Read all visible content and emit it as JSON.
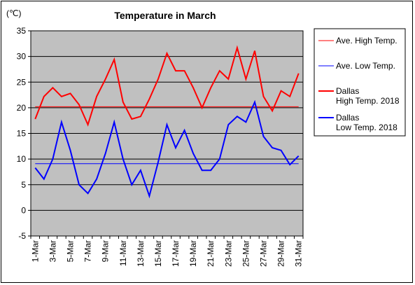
{
  "chart_data": {
    "type": "line",
    "title": "Temperature in March",
    "unit_label": "(℃)",
    "ylim": [
      -5,
      35
    ],
    "y_ticks": [
      "35",
      "30",
      "25",
      "20",
      "15",
      "10",
      "5",
      "0",
      "-5"
    ],
    "x_tick_labels": [
      "1-Mar",
      "3-Mar",
      "5-Mar",
      "7-Mar",
      "9-Mar",
      "11-Mar",
      "13-Mar",
      "15-Mar",
      "17-Mar",
      "19-Mar",
      "21-Mar",
      "23-Mar",
      "25-Mar",
      "27-Mar",
      "29-Mar",
      "31-Mar"
    ],
    "x": [
      1,
      2,
      3,
      4,
      5,
      6,
      7,
      8,
      9,
      10,
      11,
      12,
      13,
      14,
      15,
      16,
      17,
      18,
      19,
      20,
      21,
      22,
      23,
      24,
      25,
      26,
      27,
      28,
      29,
      30,
      31
    ],
    "grid": true,
    "legend_position": "right",
    "series": [
      {
        "name": "Ave. High Temp.",
        "color": "#ff0000",
        "width": 1,
        "values": [
          20.2,
          20.2,
          20.2,
          20.2,
          20.2,
          20.2,
          20.2,
          20.2,
          20.2,
          20.2,
          20.2,
          20.2,
          20.2,
          20.2,
          20.2,
          20.2,
          20.2,
          20.2,
          20.2,
          20.2,
          20.2,
          20.2,
          20.2,
          20.2,
          20.2,
          20.2,
          20.2,
          20.2,
          20.2,
          20.2,
          20.2
        ]
      },
      {
        "name": "Ave. Low Temp.",
        "color": "#0000ff",
        "width": 1,
        "values": [
          9.1,
          9.1,
          9.1,
          9.1,
          9.1,
          9.1,
          9.1,
          9.1,
          9.1,
          9.1,
          9.1,
          9.1,
          9.1,
          9.1,
          9.1,
          9.1,
          9.1,
          9.1,
          9.1,
          9.1,
          9.1,
          9.1,
          9.1,
          9.1,
          9.1,
          9.1,
          9.1,
          9.1,
          9.1,
          9.1,
          9.1
        ]
      },
      {
        "name": "Dallas High Temp. 2018",
        "name_lines": [
          "Dallas",
          "High Temp. 2018"
        ],
        "color": "#ff0000",
        "width": 2,
        "values": [
          17.8,
          22.2,
          23.9,
          22.2,
          22.8,
          20.6,
          16.7,
          22.2,
          25.6,
          29.4,
          21.1,
          17.8,
          18.3,
          21.7,
          25.6,
          30.6,
          27.2,
          27.2,
          23.9,
          20.0,
          23.9,
          27.2,
          25.6,
          31.7,
          25.6,
          31.1,
          22.2,
          19.4,
          23.3,
          22.2,
          26.7
        ]
      },
      {
        "name": "Dallas Low Temp. 2018",
        "name_lines": [
          "Dallas",
          "Low Temp. 2018"
        ],
        "color": "#0000ff",
        "width": 2,
        "values": [
          8.3,
          6.1,
          10.0,
          17.2,
          11.7,
          5.0,
          3.3,
          6.1,
          11.1,
          17.2,
          10.0,
          5.0,
          7.8,
          2.8,
          9.4,
          16.7,
          12.2,
          15.6,
          11.1,
          7.8,
          7.8,
          10.0,
          16.7,
          18.3,
          17.2,
          21.1,
          14.4,
          12.2,
          11.7,
          8.9,
          10.6
        ]
      }
    ]
  }
}
